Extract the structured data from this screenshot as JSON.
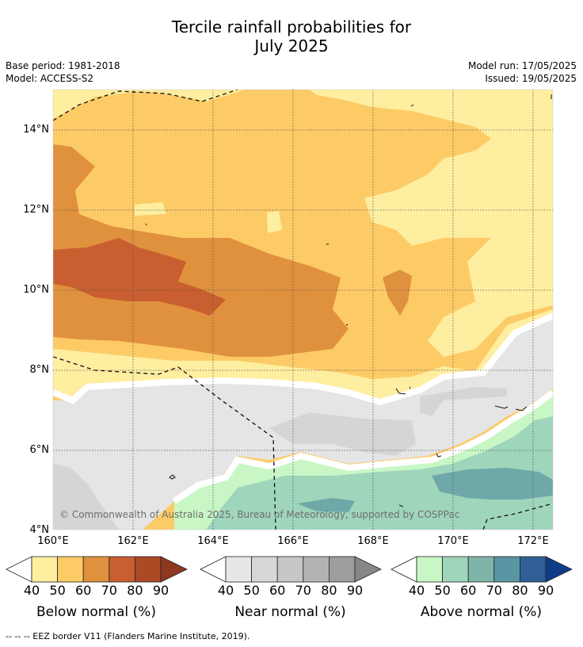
{
  "title_line1": "Tercile rainfall probabilities for",
  "title_line2": "July 2025",
  "base_period": "Base period: 1981-2018",
  "model": "Model: ACCESS-S2",
  "model_run": "Model run: 17/05/2025",
  "issued": "Issued: 19/05/2025",
  "copyright": "© Commonwealth of Australia 2025, Bureau of Meteorology, supported by COSPPac",
  "map": {
    "lat_labels": [
      "14°N",
      "12°N",
      "10°N",
      "8°N",
      "6°N",
      "4°N"
    ],
    "lon_labels": [
      "160°E",
      "162°E",
      "164°E",
      "166°E",
      "168°E",
      "170°E",
      "172°E"
    ]
  },
  "colorbars": {
    "below": {
      "title": "Below normal (%)",
      "ticks": [
        "40",
        "50",
        "60",
        "70",
        "80",
        "90"
      ],
      "colors": [
        "#ffffff",
        "#feeea0",
        "#fdcb66",
        "#e0913e",
        "#c95f30",
        "#ad4a26",
        "#8e3820"
      ]
    },
    "near": {
      "title": "Near normal (%)",
      "ticks": [
        "40",
        "50",
        "60",
        "70",
        "80",
        "90"
      ],
      "colors": [
        "#ffffff",
        "#e7e7e7",
        "#d7d7d7",
        "#c7c7c7",
        "#b3b3b3",
        "#9d9d9d",
        "#878787"
      ]
    },
    "above": {
      "title": "Above normal (%)",
      "ticks": [
        "40",
        "50",
        "60",
        "70",
        "80",
        "90"
      ],
      "colors": [
        "#ffffff",
        "#c8f7c5",
        "#9fd5bb",
        "#7fb4a9",
        "#5a95a3",
        "#2f5f96",
        "#0f3c87"
      ]
    }
  },
  "footer": "--  --  -- EEZ border V11 (Flanders Marine Institute, 2019)."
}
